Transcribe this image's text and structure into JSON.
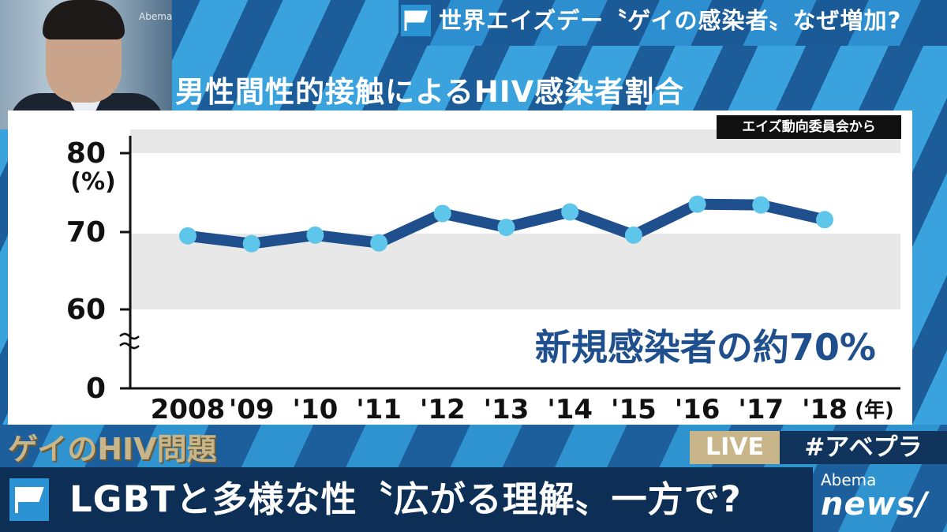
{
  "header": {
    "title": "世界エイズデー〝ゲイの感染者〟なぜ増加?"
  },
  "presenter": {
    "logo": "Abema"
  },
  "chart_title": "男性間性的接触によるHIV感染者割合",
  "source_label": "エイズ動向委員会から",
  "annotation": "新規感染者の約70%",
  "chart_data": {
    "type": "line",
    "title": "男性間性的接触によるHIV感染者割合",
    "categories": [
      "2008",
      "'09",
      "'10",
      "'11",
      "'12",
      "'13",
      "'14",
      "'15",
      "'16",
      "'17",
      "'18"
    ],
    "series": [
      {
        "values": [
          69.3,
          68.3,
          69.4,
          68.4,
          72.2,
          70.4,
          72.4,
          69.4,
          73.4,
          73.3,
          71.4
        ]
      }
    ],
    "x_unit": "(年)",
    "y_unit": "(%)",
    "y_ticks": [
      "80",
      "70",
      "60",
      "0"
    ],
    "y_axis_break": true,
    "ylim": [
      60,
      80
    ],
    "annotation": "新規感染者の約70%",
    "line_color": "#1f4f8c",
    "marker_color": "#5ec6ea",
    "grid": false
  },
  "bottom": {
    "topic": "ゲイのHIV問題",
    "live": "LIVE",
    "hashtag": "#アベプラ",
    "headline": "LGBTと多様な性〝広がる理解〟一方で?",
    "brand_top": "Abema",
    "brand_bottom": "news/"
  },
  "colors": {
    "accent": "#2b93d3",
    "dark_bar": "#0e2f55",
    "topic_gold": "#c8b58a"
  }
}
